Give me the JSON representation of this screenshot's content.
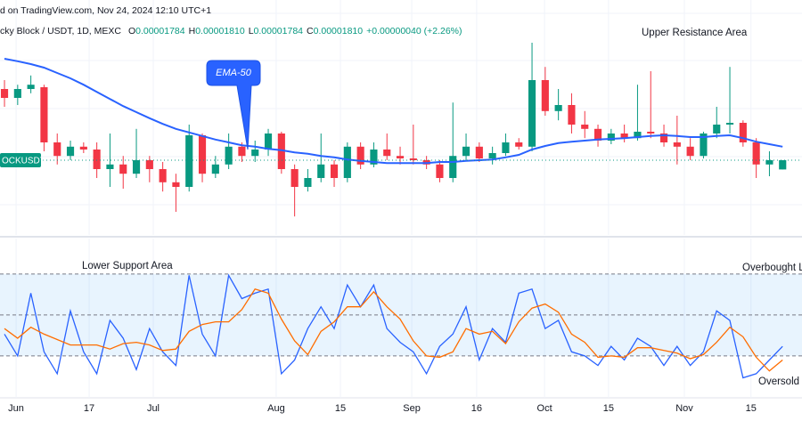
{
  "header": {
    "source": "d on TradingView.com, Nov 24, 2024 12:10 UTC+1",
    "symbol": "cky Block / USDT, 1D, MEXC",
    "ohlc": [
      {
        "label": "O",
        "value": "0.00001784"
      },
      {
        "label": "H",
        "value": "0.00001810"
      },
      {
        "label": "L",
        "value": "0.00001784"
      },
      {
        "label": "C",
        "value": "0.00001810"
      }
    ],
    "change": "+0.00000040 (+2.26%)"
  },
  "chart_data": [
    {
      "type": "candlestick",
      "xlim": [
        -0.34,
        60.47
      ],
      "ylim": [
        1.61e-05,
        2.26e-05
      ],
      "up_color": "#089981",
      "down_color": "#f23645",
      "open": [
        2.01e-05,
        1.985e-05,
        2.01e-05,
        2.015e-05,
        1.86e-05,
        1.822e-05,
        1.848e-05,
        1.84e-05,
        1.785e-05,
        1.798e-05,
        1.772e-05,
        1.81e-05,
        1.785e-05,
        1.748e-05,
        1.735e-05,
        1.88e-05,
        1.772e-05,
        1.798e-05,
        1.848e-05,
        1.822e-05,
        1.84e-05,
        1.885e-05,
        1.785e-05,
        1.735e-05,
        1.76e-05,
        1.798e-05,
        1.76e-05,
        1.848e-05,
        1.798e-05,
        1.84e-05,
        1.822e-05,
        1.815e-05,
        1.81e-05,
        1.798e-05,
        1.76e-05,
        1.822e-05,
        1.848e-05,
        1.815e-05,
        1.83e-05,
        1.86e-05,
        1.848e-05,
        2.035e-05,
        1.948e-05,
        1.965e-05,
        1.91e-05,
        1.898e-05,
        1.865e-05,
        1.885e-05,
        1.872e-05,
        1.89e-05,
        1.885e-05,
        1.86e-05,
        1.848e-05,
        1.822e-05,
        1.885e-05,
        1.91e-05,
        1.915e-05,
        1.86e-05,
        1.798e-05,
        1.784e-05
      ],
      "high": [
        2.035e-05,
        2.022e-05,
        2.048e-05,
        2.022e-05,
        1.885e-05,
        1.865e-05,
        1.86e-05,
        1.86e-05,
        1.885e-05,
        1.822e-05,
        1.898e-05,
        1.822e-05,
        1.805e-05,
        1.772e-05,
        1.91e-05,
        1.885e-05,
        1.822e-05,
        1.885e-05,
        1.86e-05,
        1.865e-05,
        1.898e-05,
        1.89e-05,
        1.798e-05,
        1.785e-05,
        1.885e-05,
        1.81e-05,
        1.86e-05,
        1.86e-05,
        1.86e-05,
        1.885e-05,
        1.848e-05,
        1.91e-05,
        1.822e-05,
        1.81e-05,
        1.972e-05,
        1.885e-05,
        1.86e-05,
        1.848e-05,
        1.885e-05,
        1.872e-05,
        2.14e-05,
        2.072e-05,
        2.01e-05,
        1.998e-05,
        1.948e-05,
        1.91e-05,
        1.898e-05,
        1.91e-05,
        2.022e-05,
        2.06e-05,
        1.91e-05,
        1.935e-05,
        1.872e-05,
        1.89e-05,
        1.96e-05,
        2.072e-05,
        1.922e-05,
        1.872e-05,
        1.835e-05,
        1.81e-05
      ],
      "low": [
        1.96e-05,
        1.965e-05,
        1.998e-05,
        1.835e-05,
        1.798e-05,
        1.81e-05,
        1.83e-05,
        1.76e-05,
        1.735e-05,
        1.73e-05,
        1.76e-05,
        1.748e-05,
        1.722e-05,
        1.665e-05,
        1.722e-05,
        1.748e-05,
        1.76e-05,
        1.785e-05,
        1.805e-05,
        1.805e-05,
        1.822e-05,
        1.772e-05,
        1.652e-05,
        1.722e-05,
        1.748e-05,
        1.735e-05,
        1.748e-05,
        1.785e-05,
        1.79e-05,
        1.81e-05,
        1.798e-05,
        1.798e-05,
        1.785e-05,
        1.748e-05,
        1.748e-05,
        1.81e-05,
        1.805e-05,
        1.798e-05,
        1.822e-05,
        1.84e-05,
        1.835e-05,
        1.935e-05,
        1.922e-05,
        1.885e-05,
        1.872e-05,
        1.848e-05,
        1.855e-05,
        1.86e-05,
        1.865e-05,
        1.872e-05,
        1.848e-05,
        1.798e-05,
        1.81e-05,
        1.815e-05,
        1.872e-05,
        1.885e-05,
        1.848e-05,
        1.76e-05,
        1.765e-05,
        1.784e-05
      ],
      "close": [
        1.985e-05,
        2.01e-05,
        2.022e-05,
        1.86e-05,
        1.822e-05,
        1.848e-05,
        1.84e-05,
        1.785e-05,
        1.798e-05,
        1.772e-05,
        1.81e-05,
        1.785e-05,
        1.748e-05,
        1.735e-05,
        1.88e-05,
        1.772e-05,
        1.798e-05,
        1.848e-05,
        1.822e-05,
        1.84e-05,
        1.885e-05,
        1.785e-05,
        1.735e-05,
        1.76e-05,
        1.798e-05,
        1.76e-05,
        1.848e-05,
        1.798e-05,
        1.84e-05,
        1.822e-05,
        1.815e-05,
        1.81e-05,
        1.798e-05,
        1.76e-05,
        1.822e-05,
        1.848e-05,
        1.815e-05,
        1.83e-05,
        1.86e-05,
        1.848e-05,
        2.035e-05,
        1.948e-05,
        1.965e-05,
        1.91e-05,
        1.898e-05,
        1.865e-05,
        1.885e-05,
        1.872e-05,
        1.89e-05,
        1.885e-05,
        1.86e-05,
        1.848e-05,
        1.822e-05,
        1.885e-05,
        1.91e-05,
        1.915e-05,
        1.86e-05,
        1.798e-05,
        1.81e-05,
        1.81e-05
      ],
      "ema": {
        "name": "EMA-50",
        "color": "#2962ff",
        "values": [
          2.095e-05,
          2.088e-05,
          2.08e-05,
          2.07e-05,
          2.055e-05,
          2.04e-05,
          2.022e-05,
          2.002e-05,
          1.982e-05,
          1.962e-05,
          1.945e-05,
          1.928e-05,
          1.912e-05,
          1.898e-05,
          1.888e-05,
          1.878e-05,
          1.868e-05,
          1.86e-05,
          1.852e-05,
          1.848e-05,
          1.842e-05,
          1.838e-05,
          1.832e-05,
          1.828e-05,
          1.822e-05,
          1.818e-05,
          1.812e-05,
          1.808e-05,
          1.805e-05,
          1.802e-05,
          1.802e-05,
          1.802e-05,
          1.802e-05,
          1.805e-05,
          1.805e-05,
          1.808e-05,
          1.81e-05,
          1.812e-05,
          1.818e-05,
          1.825e-05,
          1.84e-05,
          1.85e-05,
          1.858e-05,
          1.862e-05,
          1.865e-05,
          1.868e-05,
          1.87e-05,
          1.872e-05,
          1.875e-05,
          1.878e-05,
          1.88e-05,
          1.878e-05,
          1.875e-05,
          1.875e-05,
          1.878e-05,
          1.88e-05,
          1.872e-05,
          1.862e-05,
          1.855e-05,
          1.848e-05
        ]
      },
      "last_price_label": "OCKUSDT",
      "annotations": [
        "Upper Resistance Area"
      ]
    },
    {
      "type": "line",
      "xlim": [
        -0.34,
        60.47
      ],
      "ylim": [
        -10.7,
        106
      ],
      "levels": [
        20,
        50,
        80
      ],
      "xticks": [
        {
          "value": 0.88,
          "label": "Jun"
        },
        {
          "value": 6.42,
          "label": "17"
        },
        {
          "value": 11.28,
          "label": "Jul"
        },
        {
          "value": 20.6,
          "label": "Aug"
        },
        {
          "value": 25.47,
          "label": "15"
        },
        {
          "value": 30.88,
          "label": "Sep"
        },
        {
          "value": 35.8,
          "label": "16"
        },
        {
          "value": 40.95,
          "label": "Oct"
        },
        {
          "value": 45.8,
          "label": "15"
        },
        {
          "value": 51.55,
          "label": "Nov"
        },
        {
          "value": 56.6,
          "label": "15"
        }
      ],
      "series": [
        {
          "color": "#2962ff",
          "values": [
            36,
            20,
            66,
            23,
            7,
            53,
            23,
            7,
            46,
            33,
            10,
            40,
            23,
            13,
            79,
            36,
            20,
            79,
            62,
            66,
            69,
            7,
            17,
            40,
            56,
            40,
            72,
            56,
            72,
            40,
            30,
            23,
            7,
            27,
            36,
            56,
            17,
            40,
            30,
            66,
            69,
            40,
            46,
            23,
            20,
            13,
            27,
            17,
            33,
            27,
            13,
            27,
            13,
            23,
            53,
            46,
            4,
            7,
            17,
            27
          ]
        },
        {
          "color": "#ff6d00",
          "values": [
            40,
            33,
            41,
            36,
            32,
            28,
            28,
            28,
            25,
            29,
            30,
            28,
            24,
            25,
            38,
            43,
            45,
            45,
            54,
            69,
            66,
            47,
            31,
            21,
            38,
            45,
            56,
            56,
            67,
            56,
            47,
            31,
            20,
            19,
            23,
            40,
            36,
            38,
            29,
            45,
            55,
            58,
            52,
            36,
            30,
            19,
            20,
            19,
            26,
            26,
            24,
            22,
            18,
            21,
            30,
            41,
            34,
            19,
            9,
            17
          ]
        }
      ],
      "annotations": [
        "Lower Support Area",
        "Overbought L",
        "Oversold"
      ]
    }
  ]
}
